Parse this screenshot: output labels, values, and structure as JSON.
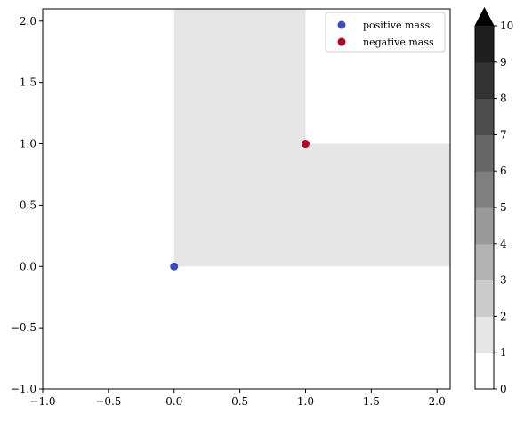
{
  "chart_data": {
    "type": "scatter",
    "xlim": [
      -1.0,
      2.1
    ],
    "ylim": [
      -1.0,
      2.1
    ],
    "x_ticks": [
      -1.0,
      -0.5,
      0.0,
      0.5,
      1.0,
      1.5,
      2.0
    ],
    "y_ticks": [
      -1.0,
      -0.5,
      0.0,
      0.5,
      1.0,
      1.5,
      2.0
    ],
    "x_tick_labels": [
      "−1.0",
      "−0.5",
      "0.0",
      "0.5",
      "1.0",
      "1.5",
      "2.0"
    ],
    "y_tick_labels": [
      "−1.0",
      "−0.5",
      "0.0",
      "0.5",
      "1.0",
      "1.5",
      "2.0"
    ],
    "grid": false,
    "legend_position": "top-right",
    "shaded_regions": [
      {
        "x": [
          0.0,
          1.0
        ],
        "y": [
          0.0,
          2.1
        ],
        "value": 1
      },
      {
        "x": [
          1.0,
          2.1
        ],
        "y": [
          0.0,
          1.0
        ],
        "value": 1
      }
    ],
    "series": [
      {
        "name": "positive mass",
        "color": "#3b4cc0",
        "points": [
          {
            "x": 0.0,
            "y": 0.0
          }
        ]
      },
      {
        "name": "negative mass",
        "color": "#b40426",
        "points": [
          {
            "x": 1.0,
            "y": 1.0
          }
        ]
      }
    ],
    "colorbar": {
      "min": 0,
      "max": 10,
      "extend": "max",
      "ticks": [
        0,
        1,
        2,
        3,
        4,
        5,
        6,
        7,
        8,
        9,
        10
      ],
      "tick_labels": [
        "0",
        "1",
        "2",
        "3",
        "4",
        "5",
        "6",
        "7",
        "8",
        "9",
        "10"
      ],
      "colors": [
        "#ffffff",
        "#e6e6e6",
        "#cccccc",
        "#b3b3b3",
        "#999999",
        "#808080",
        "#666666",
        "#4d4d4d",
        "#333333",
        "#1f1f1f"
      ],
      "extend_color": "#000000"
    }
  }
}
